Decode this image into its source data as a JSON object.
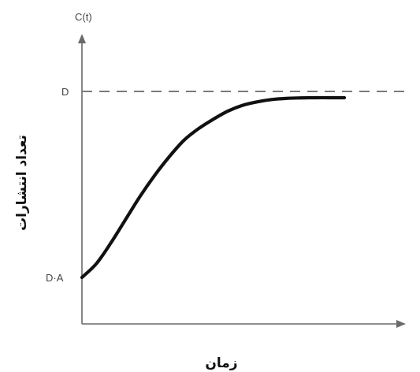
{
  "chart_data": {
    "type": "line",
    "title": "",
    "y_axis_top_label": "C(t)",
    "xlabel": "زمان",
    "ylabel": "تعداد انتشارات",
    "y_reference_labels": {
      "upper": "D",
      "lower": "D·A"
    },
    "ylim": [
      0,
      1.27
    ],
    "xlim": [
      0,
      1
    ],
    "reference_lines": [
      {
        "label": "D",
        "y": 1.0,
        "style": "dashed"
      }
    ],
    "series": [
      {
        "values": [
          {
            "x": 0.0,
            "y": 0.2
          },
          {
            "x": 0.05,
            "y": 0.26
          },
          {
            "x": 0.1,
            "y": 0.35
          },
          {
            "x": 0.15,
            "y": 0.45
          },
          {
            "x": 0.2,
            "y": 0.55
          },
          {
            "x": 0.25,
            "y": 0.64
          },
          {
            "x": 0.3,
            "y": 0.72
          },
          {
            "x": 0.35,
            "y": 0.79
          },
          {
            "x": 0.4,
            "y": 0.84
          },
          {
            "x": 0.45,
            "y": 0.88
          },
          {
            "x": 0.5,
            "y": 0.915
          },
          {
            "x": 0.55,
            "y": 0.94
          },
          {
            "x": 0.6,
            "y": 0.955
          },
          {
            "x": 0.65,
            "y": 0.965
          },
          {
            "x": 0.7,
            "y": 0.97
          },
          {
            "x": 0.75,
            "y": 0.972
          },
          {
            "x": 0.8,
            "y": 0.973
          },
          {
            "x": 0.85,
            "y": 0.973
          },
          {
            "x": 0.9,
            "y": 0.973
          }
        ]
      }
    ],
    "grid": false,
    "legend": "none"
  },
  "colors": {
    "axis": "#6a6a6a",
    "reference_line": "#7a7a7a",
    "curve": "#111111",
    "text": "#444444"
  }
}
